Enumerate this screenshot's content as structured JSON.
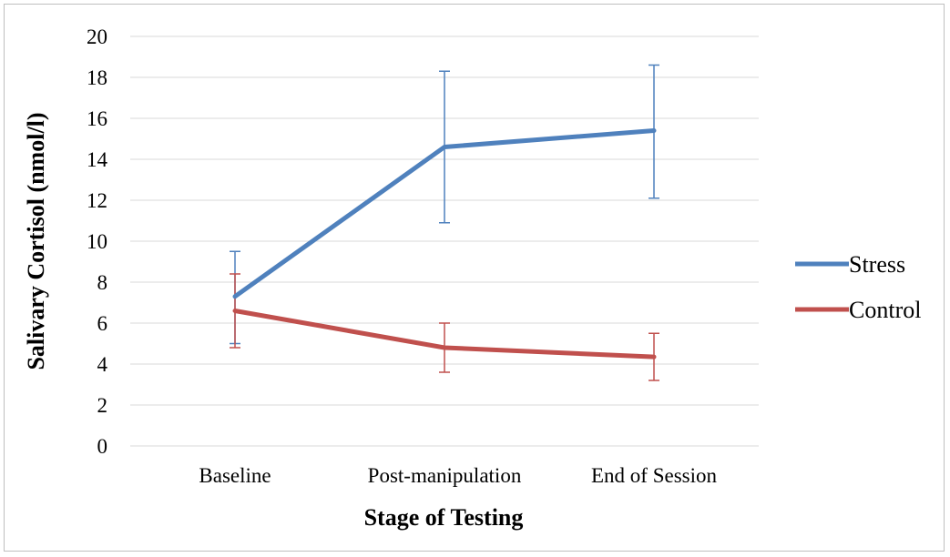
{
  "chart_data": {
    "type": "line",
    "title": "",
    "xlabel": "Stage of Testing",
    "ylabel": "Salivary Cortisol (nmol/l)",
    "categories": [
      "Baseline",
      "Post-manipulation",
      "End of Session"
    ],
    "ylim": [
      0,
      20
    ],
    "yticks": [
      0,
      2,
      4,
      6,
      8,
      10,
      12,
      14,
      16,
      18,
      20
    ],
    "grid": true,
    "legend_position": "right",
    "series": [
      {
        "name": "Stress",
        "color": "#4f81bd",
        "values": [
          7.3,
          14.6,
          15.4
        ],
        "error_low": [
          5.0,
          10.9,
          12.1
        ],
        "error_high": [
          9.5,
          18.3,
          18.6
        ]
      },
      {
        "name": "Control",
        "color": "#c0504d",
        "values": [
          6.6,
          4.8,
          4.35
        ],
        "error_low": [
          4.8,
          3.6,
          3.2
        ],
        "error_high": [
          8.4,
          6.0,
          5.5
        ]
      }
    ]
  }
}
